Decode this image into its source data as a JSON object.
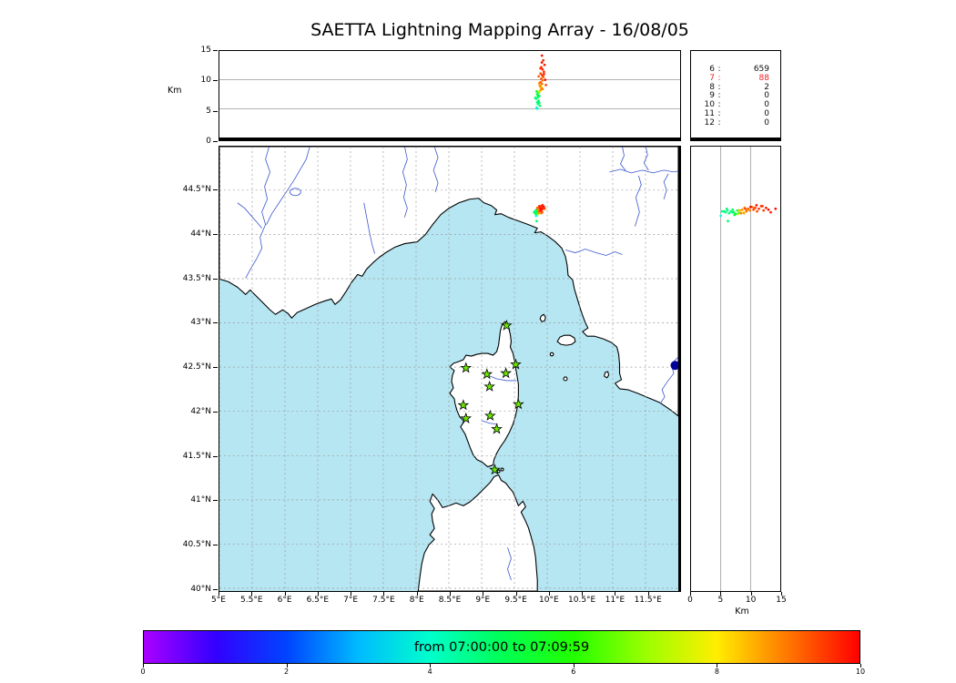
{
  "title": "SAETTA Lightning Mapping Array - 16/08/05",
  "colors": {
    "sea": "#b6e6f2",
    "land": "#ffffff",
    "coast": "#000000",
    "river": "#3a55cc",
    "grid": "#999999",
    "station_green": "#6ae800",
    "marker_blue": "#000099",
    "count_highlight": "#ee2222"
  },
  "alt_axis": {
    "label": "Km",
    "ticks": [
      0,
      5,
      10,
      15
    ],
    "max": 15
  },
  "map_axis": {
    "lat_ticks": [
      {
        "v": 44.5,
        "label": "44.5°N"
      },
      {
        "v": 44,
        "label": "44°N"
      },
      {
        "v": 43.5,
        "label": "43.5°N"
      },
      {
        "v": 43,
        "label": "43°N"
      },
      {
        "v": 42.5,
        "label": "42.5°N"
      },
      {
        "v": 42,
        "label": "42°N"
      },
      {
        "v": 41.5,
        "label": "41.5°N"
      },
      {
        "v": 41,
        "label": "41°N"
      },
      {
        "v": 40.5,
        "label": "40.5°N"
      },
      {
        "v": 40,
        "label": "40°N"
      }
    ],
    "lon_ticks": [
      {
        "v": 5,
        "label": "5°E"
      },
      {
        "v": 5.5,
        "label": "5.5°E"
      },
      {
        "v": 6,
        "label": "6°E"
      },
      {
        "v": 6.5,
        "label": "6.5°E"
      },
      {
        "v": 7,
        "label": "7°E"
      },
      {
        "v": 7.5,
        "label": "7.5°E"
      },
      {
        "v": 8,
        "label": "8°E"
      },
      {
        "v": 8.5,
        "label": "8.5°E"
      },
      {
        "v": 9,
        "label": "9°E"
      },
      {
        "v": 9.5,
        "label": "9.5°E"
      },
      {
        "v": 10,
        "label": "10°E"
      },
      {
        "v": 10.5,
        "label": "10.5°E"
      },
      {
        "v": 11,
        "label": "11°E"
      },
      {
        "v": 11.5,
        "label": "11.5°E"
      }
    ]
  },
  "stats_panel": {
    "rows": [
      {
        "alt": "6",
        "count": "659"
      },
      {
        "alt": "7",
        "count": "88",
        "color": "#ee2222"
      },
      {
        "alt": "8",
        "count": "2"
      },
      {
        "alt": "9",
        "count": "0"
      },
      {
        "alt": "10",
        "count": "0"
      },
      {
        "alt": "11",
        "count": "0"
      },
      {
        "alt": "12",
        "count": "0"
      }
    ]
  },
  "colorbar": {
    "label": "from 07:00:00 to 07:09:59",
    "ticks": [
      "0",
      "2",
      "4",
      "6",
      "8",
      "10"
    ],
    "min": 0,
    "max": 10,
    "gradient": [
      "#aa00ff",
      "#3300ff",
      "#0044ff",
      "#00bbff",
      "#00ffcc",
      "#00ff55",
      "#22ff00",
      "#99ff00",
      "#ffee00",
      "#ff7700",
      "#ff0000"
    ]
  },
  "chart_data": {
    "type": "scatter",
    "title": "SAETTA Lightning Mapping Array - 16/08/05",
    "time_window": "from 07:00:00 to 07:09:59",
    "panels": {
      "top": {
        "x": "longitude_deg_E",
        "y": "altitude_km",
        "ylim": [
          0,
          15
        ]
      },
      "map": {
        "xlim_deg_E": [
          5,
          12
        ],
        "ylim_deg_N": [
          40,
          44.99
        ]
      },
      "right": {
        "x": "altitude_km",
        "xlim": [
          0,
          15
        ]
      }
    },
    "color_scale": {
      "unit": "minutes since 07:00:00",
      "range": [
        0,
        10
      ]
    },
    "source_counts_rows": [
      [
        "6",
        659
      ],
      [
        "7",
        88
      ],
      [
        "8",
        2
      ],
      [
        "9",
        0
      ],
      [
        "10",
        0
      ],
      [
        "11",
        0
      ],
      [
        "12",
        0
      ]
    ],
    "stations_lat_lon": [
      [
        42.97,
        9.38
      ],
      [
        42.49,
        8.76
      ],
      [
        42.42,
        9.08
      ],
      [
        42.43,
        9.37
      ],
      [
        42.53,
        9.52
      ],
      [
        42.28,
        9.12
      ],
      [
        42.07,
        8.72
      ],
      [
        42.08,
        9.56
      ],
      [
        41.92,
        8.76
      ],
      [
        41.95,
        9.13
      ],
      [
        41.8,
        9.23
      ],
      [
        41.34,
        9.2
      ]
    ],
    "blue_marker_lat_lon": [
      42.52,
      11.95
    ],
    "points_lon_lat_altkm_tmin": [
      [
        9.82,
        44.26,
        5.2,
        4.2
      ],
      [
        9.84,
        44.25,
        5.8,
        4.5
      ],
      [
        9.83,
        44.27,
        6.1,
        4.4
      ],
      [
        9.85,
        44.24,
        6.4,
        4.8
      ],
      [
        9.81,
        44.26,
        6.7,
        4.6
      ],
      [
        9.84,
        44.28,
        7.0,
        5.0
      ],
      [
        9.86,
        44.25,
        7.2,
        5.2
      ],
      [
        9.83,
        44.23,
        7.5,
        5.1
      ],
      [
        9.85,
        44.27,
        7.8,
        5.4
      ],
      [
        9.82,
        44.24,
        8.0,
        5.3
      ],
      [
        9.86,
        44.29,
        6.0,
        4.9
      ],
      [
        9.8,
        44.25,
        6.9,
        4.7
      ],
      [
        9.87,
        44.26,
        5.5,
        5.0
      ],
      [
        9.84,
        44.22,
        7.3,
        5.2
      ],
      [
        9.83,
        44.21,
        5.0,
        3.8
      ],
      [
        9.84,
        44.15,
        6.2,
        4.9
      ],
      [
        9.87,
        44.27,
        8.1,
        7.5
      ],
      [
        9.89,
        44.25,
        8.8,
        7.8
      ],
      [
        9.86,
        44.23,
        7.9,
        7.2
      ],
      [
        9.88,
        44.27,
        8.2,
        8.6
      ],
      [
        9.89,
        44.28,
        8.6,
        8.8
      ],
      [
        9.87,
        44.3,
        9.0,
        9.0
      ],
      [
        9.9,
        44.26,
        9.3,
        9.1
      ],
      [
        9.88,
        44.29,
        9.6,
        9.2
      ],
      [
        9.91,
        44.27,
        9.9,
        9.0
      ],
      [
        9.89,
        44.31,
        10.2,
        9.3
      ],
      [
        9.92,
        44.28,
        10.5,
        9.4
      ],
      [
        9.9,
        44.3,
        10.8,
        9.5
      ],
      [
        9.88,
        44.26,
        11.1,
        9.3
      ],
      [
        9.93,
        44.29,
        11.4,
        9.6
      ],
      [
        9.91,
        44.32,
        11.8,
        9.7
      ],
      [
        9.89,
        44.27,
        12.2,
        9.5
      ],
      [
        9.94,
        44.3,
        12.6,
        9.8
      ],
      [
        9.9,
        44.28,
        13.0,
        9.9
      ],
      [
        9.92,
        44.25,
        13.4,
        9.7
      ],
      [
        9.87,
        44.24,
        8.9,
        8.7
      ],
      [
        9.95,
        44.31,
        10.0,
        9.9
      ],
      [
        9.86,
        44.28,
        9.4,
        8.9
      ],
      [
        9.91,
        44.24,
        8.4,
        9.0
      ],
      [
        9.85,
        44.3,
        10.6,
        9.2
      ],
      [
        9.93,
        44.33,
        11.0,
        9.8
      ],
      [
        9.96,
        44.29,
        9.1,
        9.4
      ],
      [
        9.88,
        44.32,
        12.0,
        9.6
      ],
      [
        9.9,
        44.29,
        14.2,
        9.9
      ]
    ]
  }
}
